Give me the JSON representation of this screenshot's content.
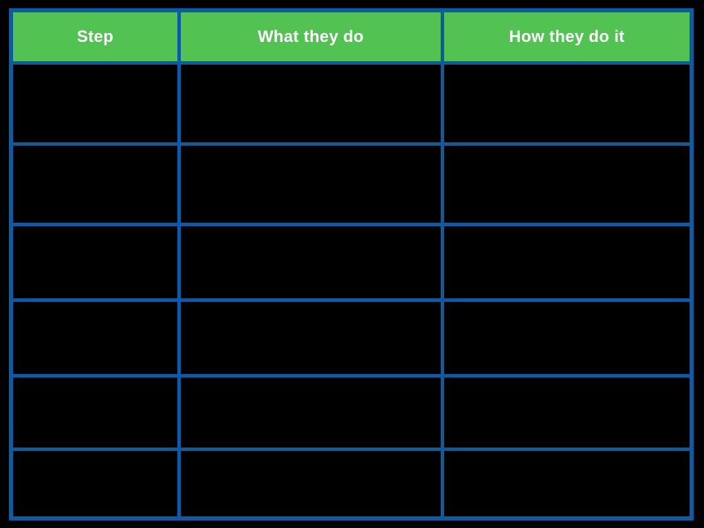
{
  "page": {
    "background": "#000000"
  },
  "colors": {
    "table_border": "#0b5ca5",
    "header_background": "#52c352",
    "header_text": "#ffffff",
    "cell_background": "#000000",
    "page_background": "#000000"
  },
  "table": {
    "columns": [
      {
        "label": "Step"
      },
      {
        "label": "What they do"
      },
      {
        "label": "How they do it"
      }
    ],
    "rows": [
      [
        "",
        "",
        ""
      ],
      [
        "",
        "",
        ""
      ],
      [
        "",
        "",
        ""
      ],
      [
        "",
        "",
        ""
      ],
      [
        "",
        "",
        ""
      ],
      [
        "",
        "",
        ""
      ]
    ]
  }
}
